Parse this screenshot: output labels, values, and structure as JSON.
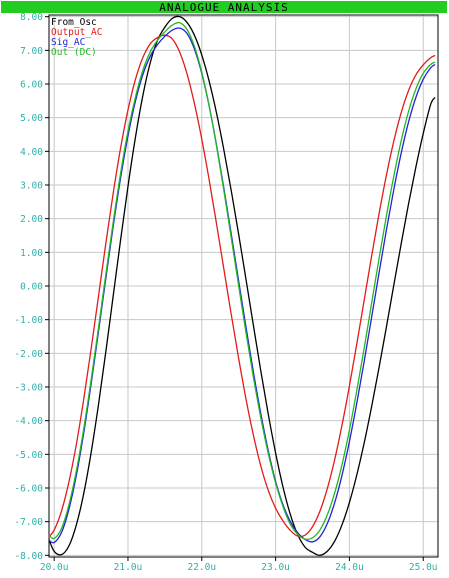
{
  "chart_data": {
    "type": "line",
    "title": "ANALOGUE ANALYSIS",
    "xlabel": "",
    "ylabel": "",
    "xlim": [
      19.93,
      25.2
    ],
    "ylim": [
      -8.05,
      8.05
    ],
    "x_ticks": [
      20.0,
      21.0,
      22.0,
      23.0,
      24.0,
      25.0
    ],
    "x_tick_labels": [
      "20.0u",
      "21.0u",
      "22.0u",
      "23.0u",
      "24.0u",
      "25.0u"
    ],
    "y_ticks": [
      8,
      7,
      6,
      5,
      4,
      3,
      2,
      1,
      0,
      -1,
      -2,
      -3,
      -4,
      -5,
      -6,
      -7,
      -8
    ],
    "y_tick_labels": [
      "8.00",
      "7.00",
      "6.00",
      "5.00",
      "4.00",
      "3.00",
      "2.00",
      "1.00",
      "0.00",
      "-1.00",
      "-2.00",
      "-3.00",
      "-4.00",
      "-5.00",
      "-6.00",
      "-7.00",
      "-8.00"
    ],
    "grid": true,
    "legend_position": "top-left",
    "colors": {
      "title_bar": "#22cc22",
      "grid": "#c8c8c8",
      "axis_text": "#2fb0a8",
      "frame": "#000000"
    },
    "series": [
      {
        "name": "From_Osc",
        "color": "#000000",
        "x": [
          19.93,
          20.0,
          20.1,
          20.2,
          20.3,
          20.4,
          20.5,
          20.6,
          20.7,
          20.8,
          20.9,
          21.0,
          21.1,
          21.2,
          21.3,
          21.4,
          21.5,
          21.6,
          21.7,
          21.8,
          21.9,
          22.0,
          22.1,
          22.2,
          22.3,
          22.4,
          22.5,
          22.6,
          22.7,
          22.8,
          22.9,
          23.0,
          23.1,
          23.2,
          23.3,
          23.4,
          23.5,
          23.6,
          23.7,
          23.8,
          23.9,
          24.0,
          24.1,
          24.2,
          24.3,
          24.4,
          24.5,
          24.6,
          24.7,
          24.8,
          24.9,
          25.0,
          25.1,
          25.16
        ],
        "y": [
          -7.53,
          -7.88,
          -7.98,
          -7.72,
          -7.1,
          -6.17,
          -4.96,
          -3.53,
          -1.95,
          -0.29,
          1.37,
          2.96,
          4.4,
          5.64,
          6.62,
          7.3,
          7.69,
          7.95,
          8.0,
          7.83,
          7.45,
          6.86,
          6.08,
          5.13,
          4.03,
          2.82,
          1.53,
          0.18,
          -1.18,
          -2.53,
          -3.8,
          -4.96,
          -5.97,
          -6.79,
          -7.39,
          -7.76,
          -7.91,
          -8.0,
          -7.88,
          -7.58,
          -7.09,
          -6.43,
          -5.61,
          -4.66,
          -3.59,
          -2.44,
          -1.23,
          0.01,
          1.24,
          2.43,
          3.53,
          4.53,
          5.39,
          5.6
        ]
      },
      {
        "name": "Output_AC",
        "color": "#e21b1b",
        "x": [
          19.93,
          20.0,
          20.1,
          20.2,
          20.3,
          20.4,
          20.5,
          20.6,
          20.7,
          20.8,
          20.9,
          21.0,
          21.1,
          21.2,
          21.3,
          21.4,
          21.5,
          21.6,
          21.7,
          21.8,
          21.9,
          22.0,
          22.1,
          22.2,
          22.3,
          22.4,
          22.5,
          22.6,
          22.7,
          22.8,
          22.9,
          23.0,
          23.1,
          23.2,
          23.3,
          23.4,
          23.5,
          23.6,
          23.7,
          23.8,
          23.9,
          24.0,
          24.1,
          24.2,
          24.3,
          24.4,
          24.5,
          24.6,
          24.7,
          24.8,
          24.9,
          25.0,
          25.1,
          25.16
        ],
        "y": [
          -7.45,
          -7.25,
          -6.68,
          -5.82,
          -4.71,
          -3.37,
          -1.88,
          -0.31,
          1.27,
          2.76,
          4.1,
          5.23,
          6.13,
          6.78,
          7.19,
          7.38,
          7.45,
          7.34,
          6.95,
          6.3,
          5.42,
          4.36,
          3.15,
          1.84,
          0.49,
          -0.86,
          -2.16,
          -3.37,
          -4.44,
          -5.35,
          -6.07,
          -6.6,
          -6.98,
          -7.26,
          -7.43,
          -7.4,
          -7.15,
          -6.69,
          -6.02,
          -5.16,
          -4.13,
          -2.97,
          -1.72,
          -0.42,
          0.88,
          2.13,
          3.28,
          4.29,
          5.14,
          5.8,
          6.27,
          6.57,
          6.78,
          6.85
        ]
      },
      {
        "name": "Sig_AC",
        "color": "#2222d8",
        "x": [
          19.93,
          20.0,
          20.1,
          20.2,
          20.3,
          20.4,
          20.5,
          20.6,
          20.7,
          20.8,
          20.9,
          21.0,
          21.1,
          21.2,
          21.3,
          21.4,
          21.5,
          21.6,
          21.7,
          21.8,
          21.9,
          22.0,
          22.1,
          22.2,
          22.3,
          22.4,
          22.5,
          22.6,
          22.7,
          22.8,
          22.9,
          23.0,
          23.1,
          23.2,
          23.3,
          23.4,
          23.5,
          23.6,
          23.7,
          23.8,
          23.9,
          24.0,
          24.1,
          24.2,
          24.3,
          24.4,
          24.5,
          24.6,
          24.7,
          24.8,
          24.9,
          25.0,
          25.1,
          25.16
        ],
        "y": [
          -7.55,
          -7.62,
          -7.32,
          -6.63,
          -5.63,
          -4.37,
          -2.92,
          -1.36,
          0.23,
          1.78,
          3.21,
          4.46,
          5.48,
          6.27,
          6.82,
          7.17,
          7.42,
          7.6,
          7.66,
          7.5,
          7.04,
          6.31,
          5.34,
          4.18,
          2.89,
          1.53,
          0.14,
          -1.24,
          -2.57,
          -3.8,
          -4.89,
          -5.8,
          -6.5,
          -7.0,
          -7.33,
          -7.53,
          -7.6,
          -7.45,
          -7.06,
          -6.44,
          -5.62,
          -4.62,
          -3.48,
          -2.24,
          -0.94,
          0.37,
          1.65,
          2.85,
          3.93,
          4.86,
          5.6,
          6.14,
          6.48,
          6.58
        ]
      },
      {
        "name": "Out (DC)",
        "color": "#22b822",
        "x": [
          19.93,
          20.0,
          20.1,
          20.2,
          20.3,
          20.4,
          20.5,
          20.6,
          20.7,
          20.8,
          20.9,
          21.0,
          21.1,
          21.2,
          21.3,
          21.4,
          21.5,
          21.6,
          21.7,
          21.8,
          21.9,
          22.0,
          22.1,
          22.2,
          22.3,
          22.4,
          22.5,
          22.6,
          22.7,
          22.8,
          22.9,
          23.0,
          23.1,
          23.2,
          23.3,
          23.4,
          23.5,
          23.6,
          23.7,
          23.8,
          23.9,
          24.0,
          24.1,
          24.2,
          24.3,
          24.4,
          24.5,
          24.6,
          24.7,
          24.8,
          24.9,
          25.0,
          25.1,
          25.16
        ],
        "y": [
          -7.4,
          -7.5,
          -7.2,
          -6.5,
          -5.5,
          -4.25,
          -2.8,
          -1.25,
          0.35,
          1.9,
          3.35,
          4.6,
          5.6,
          6.4,
          6.95,
          7.3,
          7.55,
          7.75,
          7.82,
          7.62,
          7.12,
          6.35,
          5.35,
          4.15,
          2.82,
          1.42,
          0.0,
          -1.4,
          -2.72,
          -3.92,
          -4.97,
          -5.85,
          -6.55,
          -7.08,
          -7.38,
          -7.52,
          -7.48,
          -7.25,
          -6.8,
          -6.15,
          -5.3,
          -4.28,
          -3.1,
          -1.85,
          -0.52,
          0.8,
          2.07,
          3.25,
          4.3,
          5.18,
          5.85,
          6.32,
          6.58,
          6.65
        ]
      }
    ]
  }
}
